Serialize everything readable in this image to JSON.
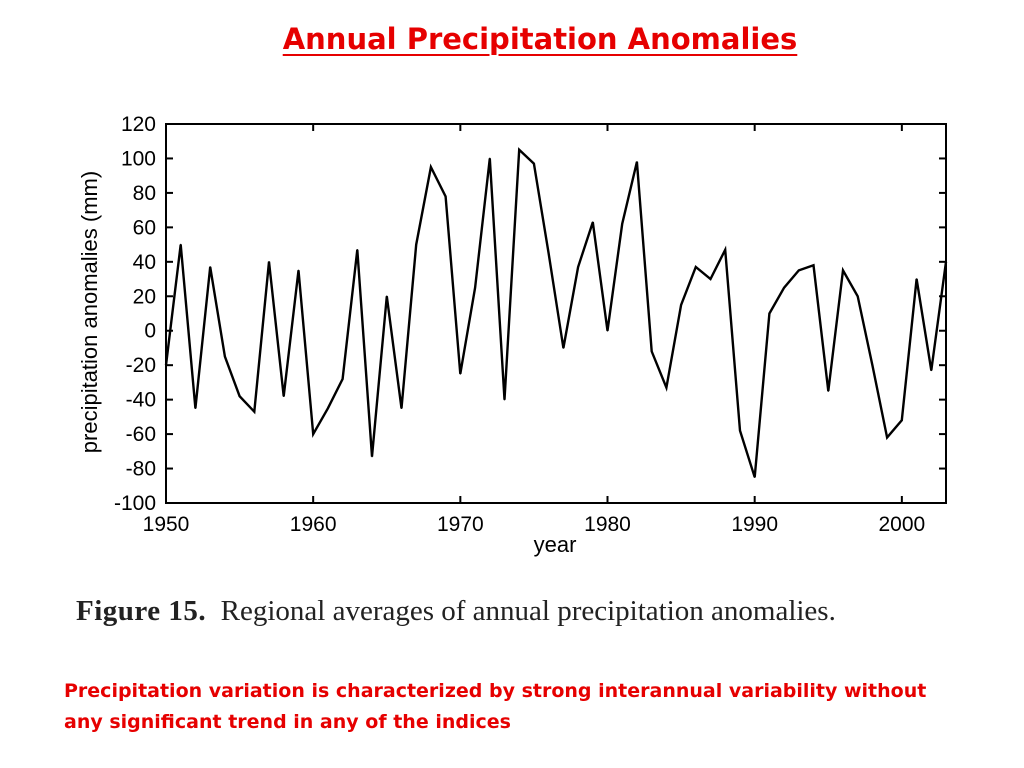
{
  "slide": {
    "title": "Annual Precipitation Anomalies",
    "caption_label": "Figure 15.",
    "caption_text": "Regional averages of annual precipitation anomalies.",
    "note": "Precipitation variation is characterized by strong interannual variability without any significant trend in any of the indices",
    "title_color": "#e60000",
    "note_color": "#e60000"
  },
  "chart_data": {
    "type": "line",
    "xlabel": "year",
    "ylabel": "precipitation anomalies (mm)",
    "xlim": [
      1950,
      2003
    ],
    "ylim": [
      -100,
      120
    ],
    "xticks": [
      1950,
      1960,
      1970,
      1980,
      1990,
      2000
    ],
    "yticks": [
      120,
      100,
      80,
      60,
      40,
      20,
      0,
      -20,
      -40,
      -60,
      -80,
      -100
    ],
    "grid": false,
    "series": [
      {
        "x": [
          1950,
          1951,
          1952,
          1953,
          1954,
          1955,
          1956,
          1957,
          1958,
          1959,
          1960,
          1961,
          1962,
          1963,
          1964,
          1965,
          1966,
          1967,
          1968,
          1969,
          1970,
          1971,
          1972,
          1973,
          1974,
          1975,
          1976,
          1977,
          1978,
          1979,
          1980,
          1981,
          1982,
          1983,
          1984,
          1985,
          1986,
          1987,
          1988,
          1989,
          1990,
          1991,
          1992,
          1993,
          1994,
          1995,
          1996,
          1997,
          1998,
          1999,
          2000,
          2001,
          2002,
          2003
        ],
        "y": [
          -20,
          50,
          -45,
          37,
          -15,
          -38,
          -47,
          40,
          -38,
          35,
          -60,
          -45,
          -28,
          47,
          -73,
          20,
          -45,
          50,
          95,
          78,
          -25,
          25,
          100,
          -40,
          105,
          97,
          45,
          -10,
          37,
          63,
          0,
          62,
          98,
          -12,
          -33,
          15,
          37,
          30,
          47,
          -58,
          -85,
          10,
          25,
          35,
          38,
          -35,
          35,
          20,
          -20,
          -62,
          -52,
          30,
          -23,
          40
        ]
      }
    ]
  }
}
